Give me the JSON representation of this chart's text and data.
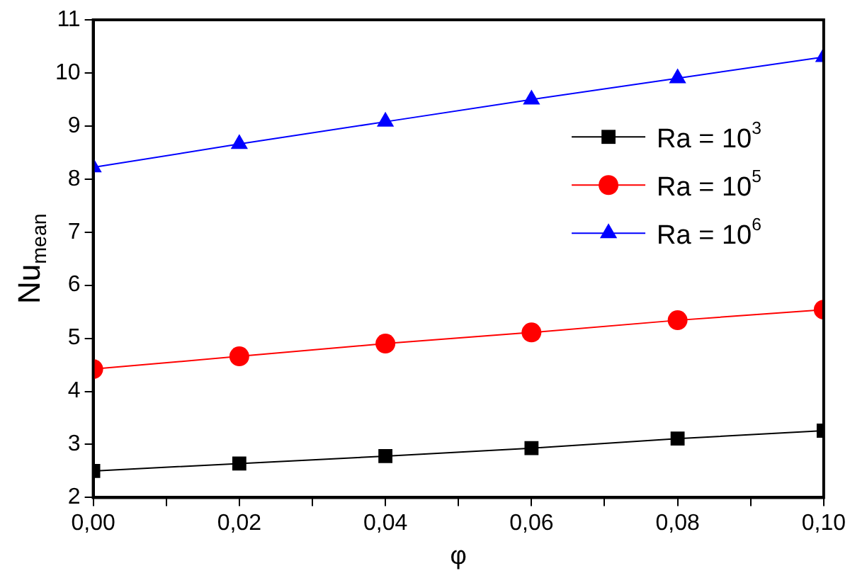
{
  "chart_data": {
    "type": "line",
    "xlabel": "φ",
    "ylabel": "Nu$_{mean}$",
    "x": [
      0,
      0.02,
      0.04,
      0.06,
      0.08,
      0.1
    ],
    "xlim": [
      0,
      0.1
    ],
    "ylim": [
      2,
      11
    ],
    "xticks": [
      {
        "value": 0,
        "label": "0,00"
      },
      {
        "value": 0.01,
        "label": null
      },
      {
        "value": 0.02,
        "label": "0,02"
      },
      {
        "value": 0.03,
        "label": null
      },
      {
        "value": 0.04,
        "label": "0,04"
      },
      {
        "value": 0.05,
        "label": null
      },
      {
        "value": 0.06,
        "label": "0,06"
      },
      {
        "value": 0.07,
        "label": null
      },
      {
        "value": 0.08,
        "label": "0,08"
      },
      {
        "value": 0.09,
        "label": null
      },
      {
        "value": 0.1,
        "label": "0,10"
      }
    ],
    "yticks": [
      2,
      3,
      4,
      5,
      6,
      7,
      8,
      9,
      10,
      11
    ],
    "grid": false,
    "legend": "right",
    "line_style": "solid",
    "series": [
      {
        "name": "Ra = 10$^{3}$",
        "color": "#000000",
        "marker": "square",
        "values": [
          2.5,
          2.64,
          2.78,
          2.93,
          3.11,
          3.26
        ]
      },
      {
        "name": "Ra = 10$^{5}$",
        "color": "#ff0000",
        "marker": "circle",
        "values": [
          4.42,
          4.66,
          4.9,
          5.11,
          5.34,
          5.54
        ]
      },
      {
        "name": "Ra = 10$^{6}$",
        "color": "#0000ff",
        "marker": "triangle",
        "values": [
          8.22,
          8.66,
          9.08,
          9.5,
          9.9,
          10.3
        ]
      }
    ]
  }
}
